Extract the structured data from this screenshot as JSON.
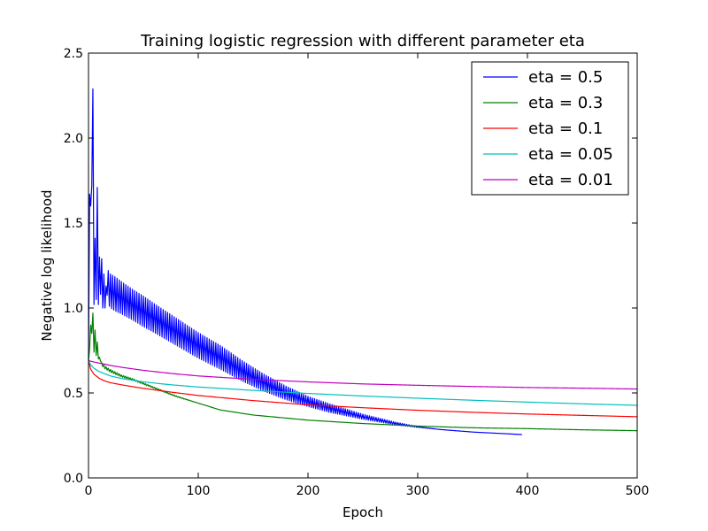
{
  "chart_data": {
    "type": "line",
    "title": "Training logistic regression with different parameter eta",
    "xlabel": "Epoch",
    "ylabel": "Negative log likelihood",
    "xlim": [
      0,
      500
    ],
    "ylim": [
      0.0,
      2.5
    ],
    "xticks": [
      "0",
      "100",
      "200",
      "300",
      "400",
      "500"
    ],
    "yticks": [
      "0.0",
      "0.5",
      "1.0",
      "1.5",
      "2.0",
      "2.5"
    ],
    "grid": false,
    "legend_position": "top-right",
    "series": [
      {
        "name": "eta = 0.5",
        "color": "#0000ff",
        "x": [
          0,
          1,
          2,
          3,
          4,
          5,
          6,
          7,
          8,
          9,
          10,
          11,
          12,
          13,
          14,
          15,
          16,
          18,
          20,
          25,
          30,
          40,
          50,
          60,
          80,
          100,
          120,
          140,
          160,
          180,
          200,
          220,
          250,
          280,
          300,
          320,
          350,
          380,
          395
        ],
        "y": [
          0.69,
          1.67,
          1.6,
          1.72,
          2.29,
          1.02,
          1.41,
          1.05,
          1.71,
          1.02,
          1.3,
          1.08,
          1.29,
          1.0,
          1.2,
          1.0,
          1.13,
          1.12,
          1.1,
          1.08,
          1.06,
          1.02,
          0.98,
          0.94,
          0.86,
          0.78,
          0.71,
          0.63,
          0.56,
          0.5,
          0.45,
          0.41,
          0.36,
          0.32,
          0.3,
          0.285,
          0.27,
          0.26,
          0.255
        ],
        "oscillation": [
          0.0,
          0.0,
          0.0,
          0.0,
          0.0,
          0.0,
          0.0,
          0.0,
          0.0,
          0.0,
          0.0,
          0.0,
          0.0,
          0.0,
          0.0,
          0.0,
          0.0,
          0.1,
          0.1,
          0.1,
          0.095,
          0.09,
          0.09,
          0.085,
          0.08,
          0.075,
          0.07,
          0.06,
          0.05,
          0.04,
          0.03,
          0.025,
          0.015,
          0.008,
          0.003,
          0.0,
          0.0,
          0.0,
          0.0
        ]
      },
      {
        "name": "eta = 0.3",
        "color": "#008000",
        "x": [
          0,
          1,
          2,
          3,
          4,
          5,
          6,
          7,
          8,
          9,
          10,
          12,
          15,
          20,
          30,
          40,
          50,
          60,
          80,
          100,
          120,
          150,
          200,
          250,
          300,
          350,
          400,
          450,
          500
        ],
        "y": [
          0.69,
          0.76,
          0.9,
          0.85,
          0.97,
          0.74,
          0.87,
          0.72,
          0.8,
          0.7,
          0.71,
          0.67,
          0.65,
          0.63,
          0.6,
          0.58,
          0.555,
          0.53,
          0.48,
          0.44,
          0.4,
          0.37,
          0.34,
          0.32,
          0.305,
          0.295,
          0.29,
          0.283,
          0.278
        ],
        "oscillation": [
          0.0,
          0.0,
          0.0,
          0.0,
          0.0,
          0.0,
          0.0,
          0.0,
          0.0,
          0.0,
          0.0,
          0.008,
          0.008,
          0.008,
          0.006,
          0.005,
          0.004,
          0.004,
          0.003,
          0.0,
          0.0,
          0.0,
          0.0,
          0.0,
          0.0,
          0.0,
          0.0,
          0.0,
          0.0
        ]
      },
      {
        "name": "eta = 0.1",
        "color": "#ff0000",
        "x": [
          0,
          2,
          5,
          10,
          15,
          20,
          30,
          40,
          50,
          75,
          100,
          150,
          200,
          250,
          300,
          350,
          400,
          450,
          500
        ],
        "y": [
          0.69,
          0.64,
          0.61,
          0.585,
          0.57,
          0.56,
          0.548,
          0.537,
          0.527,
          0.505,
          0.485,
          0.455,
          0.43,
          0.413,
          0.398,
          0.386,
          0.376,
          0.368,
          0.36
        ]
      },
      {
        "name": "eta = 0.05",
        "color": "#00bfbf",
        "x": [
          0,
          2,
          5,
          10,
          20,
          30,
          50,
          75,
          100,
          150,
          200,
          250,
          300,
          350,
          400,
          450,
          500
        ],
        "y": [
          0.69,
          0.665,
          0.645,
          0.625,
          0.6,
          0.585,
          0.565,
          0.548,
          0.535,
          0.515,
          0.497,
          0.482,
          0.469,
          0.457,
          0.446,
          0.436,
          0.427
        ]
      },
      {
        "name": "eta = 0.01",
        "color": "#bf00bf",
        "x": [
          0,
          5,
          10,
          20,
          30,
          50,
          75,
          100,
          150,
          200,
          250,
          300,
          350,
          400,
          450,
          500
        ],
        "y": [
          0.69,
          0.682,
          0.675,
          0.662,
          0.651,
          0.633,
          0.615,
          0.6,
          0.58,
          0.565,
          0.553,
          0.545,
          0.538,
          0.532,
          0.528,
          0.523
        ]
      }
    ]
  }
}
